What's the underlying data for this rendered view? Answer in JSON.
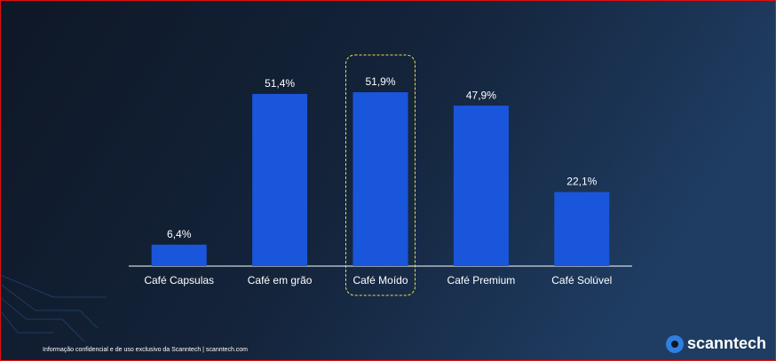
{
  "chart_data": {
    "type": "bar",
    "categories": [
      "Café Capsulas",
      "Café em grão",
      "Café Moído",
      "Café Premium",
      "Café Solúvel"
    ],
    "values": [
      6.4,
      51.4,
      51.9,
      47.9,
      22.1
    ],
    "value_labels": [
      "6,4%",
      "51,4%",
      "51,9%",
      "47,9%",
      "22,1%"
    ],
    "color": "#1a56db",
    "highlight_category": 2,
    "highlight_color": "#e6e14a"
  },
  "footer": {
    "disclaimer": "Informação confidencial e de uso exclusivo da Scanntech | scanntech.com",
    "logo": "scanntech"
  }
}
